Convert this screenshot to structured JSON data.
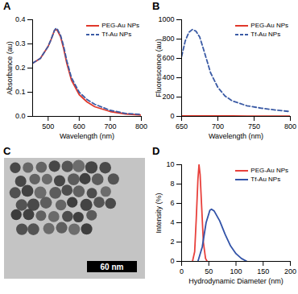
{
  "chart_data": [
    {
      "type": "line",
      "title": "A",
      "x_label": "Wavelength (nm)",
      "y_label": "Absorbance (au)",
      "x": [
        450,
        475,
        500,
        510,
        520,
        525,
        530,
        540,
        550,
        560,
        575,
        600,
        625,
        650,
        700,
        750,
        800
      ],
      "series": [
        {
          "name": "PEG-Au NPs",
          "color": "#e0382b",
          "line_style": "solid",
          "values": [
            0.22,
            0.24,
            0.29,
            0.32,
            0.355,
            0.36,
            0.355,
            0.33,
            0.28,
            0.22,
            0.15,
            0.09,
            0.06,
            0.04,
            0.02,
            0.01,
            0.005
          ]
        },
        {
          "name": "Tf-Au NPs",
          "color": "#3b5ba5",
          "line_style": "dashed",
          "values": [
            0.22,
            0.24,
            0.29,
            0.32,
            0.355,
            0.365,
            0.36,
            0.335,
            0.29,
            0.23,
            0.16,
            0.1,
            0.07,
            0.05,
            0.025,
            0.012,
            0.008
          ]
        }
      ],
      "xlim": [
        450,
        800
      ],
      "xticks": [
        500,
        600,
        700,
        800
      ],
      "ylim": [
        0,
        0.4
      ],
      "yticks": [
        {
          "value": 0,
          "label": "0.0"
        },
        0.1,
        0.2,
        0.3,
        0.4
      ],
      "legend": "top-right"
    },
    {
      "type": "line",
      "title": "B",
      "x_label": "Wavelength (nm)",
      "y_label": "Fluorescence (au)",
      "x": [
        650,
        655,
        660,
        665,
        670,
        675,
        680,
        690,
        700,
        710,
        720,
        740,
        760,
        780,
        800
      ],
      "series": [
        {
          "name": "PEG-Au NPs",
          "color": "#e0382b",
          "line_style": "solid",
          "values": [
            5,
            5,
            5,
            5,
            5,
            5,
            5,
            4,
            4,
            4,
            4,
            3,
            3,
            3,
            3
          ]
        },
        {
          "name": "Tf-Au NPs",
          "color": "#3b5ba5",
          "line_style": "dashed",
          "values": [
            620,
            780,
            870,
            900,
            880,
            820,
            700,
            450,
            300,
            210,
            160,
            110,
            85,
            65,
            50
          ]
        }
      ],
      "xlim": [
        650,
        800
      ],
      "xticks": [
        650,
        700,
        750,
        800
      ],
      "ylim": [
        0,
        1000
      ],
      "yticks": [
        0,
        200,
        400,
        600,
        800,
        1000
      ],
      "legend": "top-right"
    },
    {
      "type": "image",
      "title": "C",
      "annotations": [
        "60 nm"
      ]
    },
    {
      "type": "line",
      "title": "D",
      "x_label": "Hydrodynamic Diameter (nm)",
      "y_label": "Intensity (%)",
      "series": [
        {
          "name": "PEG-Au NPs",
          "color": "#e8413c",
          "line_style": "solid",
          "x": [
            20,
            24,
            27,
            30,
            32,
            34,
            37,
            40,
            44,
            47
          ],
          "values": [
            0,
            1,
            4.5,
            8.5,
            10,
            9,
            5.5,
            2,
            0.3,
            0
          ]
        },
        {
          "name": "Tf-Au NPs",
          "color": "#3253a8",
          "line_style": "solid",
          "x": [
            30,
            38,
            45,
            52,
            55,
            60,
            70,
            80,
            90,
            100,
            110,
            120
          ],
          "values": [
            0,
            1.5,
            4,
            5.3,
            5.4,
            5.2,
            4.2,
            2.8,
            1.6,
            0.8,
            0.3,
            0
          ]
        }
      ],
      "xlim": [
        0,
        200
      ],
      "xticks": [
        0,
        50,
        100,
        150,
        200
      ],
      "ylim": [
        0,
        10
      ],
      "yticks": [
        0,
        2,
        4,
        6,
        8,
        10
      ],
      "legend": "top-right"
    }
  ]
}
